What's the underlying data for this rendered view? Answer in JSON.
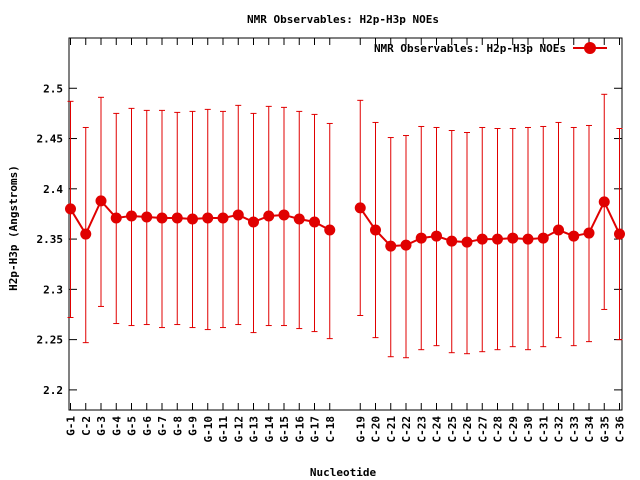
{
  "chart_data": {
    "type": "line",
    "title": "NMR Observables: H2p-H3p NOEs",
    "xlabel": "Nucleotide",
    "ylabel": "H2p-H3p (Angstroms)",
    "ylim": [
      2.18,
      2.55
    ],
    "yticks": [
      "2.2",
      "2.25",
      "2.3",
      "2.35",
      "2.4",
      "2.45",
      "2.5"
    ],
    "ytick_values": [
      2.2,
      2.25,
      2.3,
      2.35,
      2.4,
      2.45,
      2.5
    ],
    "legend": {
      "label": "NMR Observables: H2p-H3p NOEs",
      "position": "top-right"
    },
    "grid": false,
    "colors": {
      "series": "#e00000",
      "axis": "#000000"
    },
    "series": [
      {
        "name": "NMR Observables: H2p-H3p NOEs",
        "segments": [
          [
            {
              "x": "G-1",
              "y": 2.38,
              "err_low": 2.272,
              "err_high": 2.487
            },
            {
              "x": "C-2",
              "y": 2.355,
              "err_low": 2.247,
              "err_high": 2.461
            },
            {
              "x": "G-3",
              "y": 2.388,
              "err_low": 2.283,
              "err_high": 2.491
            },
            {
              "x": "G-4",
              "y": 2.371,
              "err_low": 2.266,
              "err_high": 2.475
            },
            {
              "x": "G-5",
              "y": 2.373,
              "err_low": 2.264,
              "err_high": 2.48
            },
            {
              "x": "G-6",
              "y": 2.372,
              "err_low": 2.265,
              "err_high": 2.478
            },
            {
              "x": "G-7",
              "y": 2.371,
              "err_low": 2.262,
              "err_high": 2.478
            },
            {
              "x": "G-8",
              "y": 2.371,
              "err_low": 2.265,
              "err_high": 2.476
            },
            {
              "x": "G-9",
              "y": 2.37,
              "err_low": 2.262,
              "err_high": 2.477
            },
            {
              "x": "G-10",
              "y": 2.371,
              "err_low": 2.26,
              "err_high": 2.479
            },
            {
              "x": "G-11",
              "y": 2.371,
              "err_low": 2.262,
              "err_high": 2.477
            },
            {
              "x": "G-12",
              "y": 2.374,
              "err_low": 2.265,
              "err_high": 2.483
            },
            {
              "x": "G-13",
              "y": 2.367,
              "err_low": 2.257,
              "err_high": 2.475
            },
            {
              "x": "G-14",
              "y": 2.373,
              "err_low": 2.264,
              "err_high": 2.482
            },
            {
              "x": "G-15",
              "y": 2.374,
              "err_low": 2.264,
              "err_high": 2.481
            },
            {
              "x": "G-16",
              "y": 2.37,
              "err_low": 2.261,
              "err_high": 2.477
            },
            {
              "x": "G-17",
              "y": 2.367,
              "err_low": 2.258,
              "err_high": 2.474
            },
            {
              "x": "C-18",
              "y": 2.359,
              "err_low": 2.251,
              "err_high": 2.465
            }
          ],
          [
            {
              "x": "G-19",
              "y": 2.381,
              "err_low": 2.274,
              "err_high": 2.488
            },
            {
              "x": "C-20",
              "y": 2.359,
              "err_low": 2.252,
              "err_high": 2.466
            },
            {
              "x": "C-21",
              "y": 2.343,
              "err_low": 2.233,
              "err_high": 2.451
            },
            {
              "x": "C-22",
              "y": 2.344,
              "err_low": 2.232,
              "err_high": 2.453
            },
            {
              "x": "C-23",
              "y": 2.351,
              "err_low": 2.24,
              "err_high": 2.462
            },
            {
              "x": "C-24",
              "y": 2.353,
              "err_low": 2.244,
              "err_high": 2.461
            },
            {
              "x": "C-25",
              "y": 2.348,
              "err_low": 2.237,
              "err_high": 2.458
            },
            {
              "x": "C-26",
              "y": 2.347,
              "err_low": 2.236,
              "err_high": 2.456
            },
            {
              "x": "C-27",
              "y": 2.35,
              "err_low": 2.238,
              "err_high": 2.461
            },
            {
              "x": "C-28",
              "y": 2.35,
              "err_low": 2.24,
              "err_high": 2.46
            },
            {
              "x": "C-29",
              "y": 2.351,
              "err_low": 2.243,
              "err_high": 2.46
            },
            {
              "x": "C-30",
              "y": 2.35,
              "err_low": 2.24,
              "err_high": 2.461
            },
            {
              "x": "C-31",
              "y": 2.351,
              "err_low": 2.243,
              "err_high": 2.462
            },
            {
              "x": "C-32",
              "y": 2.359,
              "err_low": 2.252,
              "err_high": 2.466
            },
            {
              "x": "C-33",
              "y": 2.353,
              "err_low": 2.244,
              "err_high": 2.461
            },
            {
              "x": "C-34",
              "y": 2.356,
              "err_low": 2.248,
              "err_high": 2.463
            },
            {
              "x": "G-35",
              "y": 2.387,
              "err_low": 2.28,
              "err_high": 2.494
            },
            {
              "x": "C-36",
              "y": 2.355,
              "err_low": 2.25,
              "err_high": 2.46
            }
          ]
        ]
      }
    ]
  }
}
